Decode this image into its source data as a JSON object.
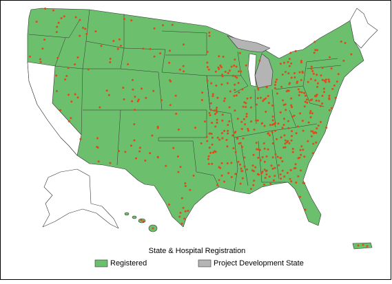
{
  "legend": {
    "title": "State & Hospital Registration",
    "items": [
      {
        "label": "Registered",
        "color": "#6cbf6c"
      },
      {
        "label": "Project Development State",
        "color": "#b4b4b4"
      }
    ]
  }
}
